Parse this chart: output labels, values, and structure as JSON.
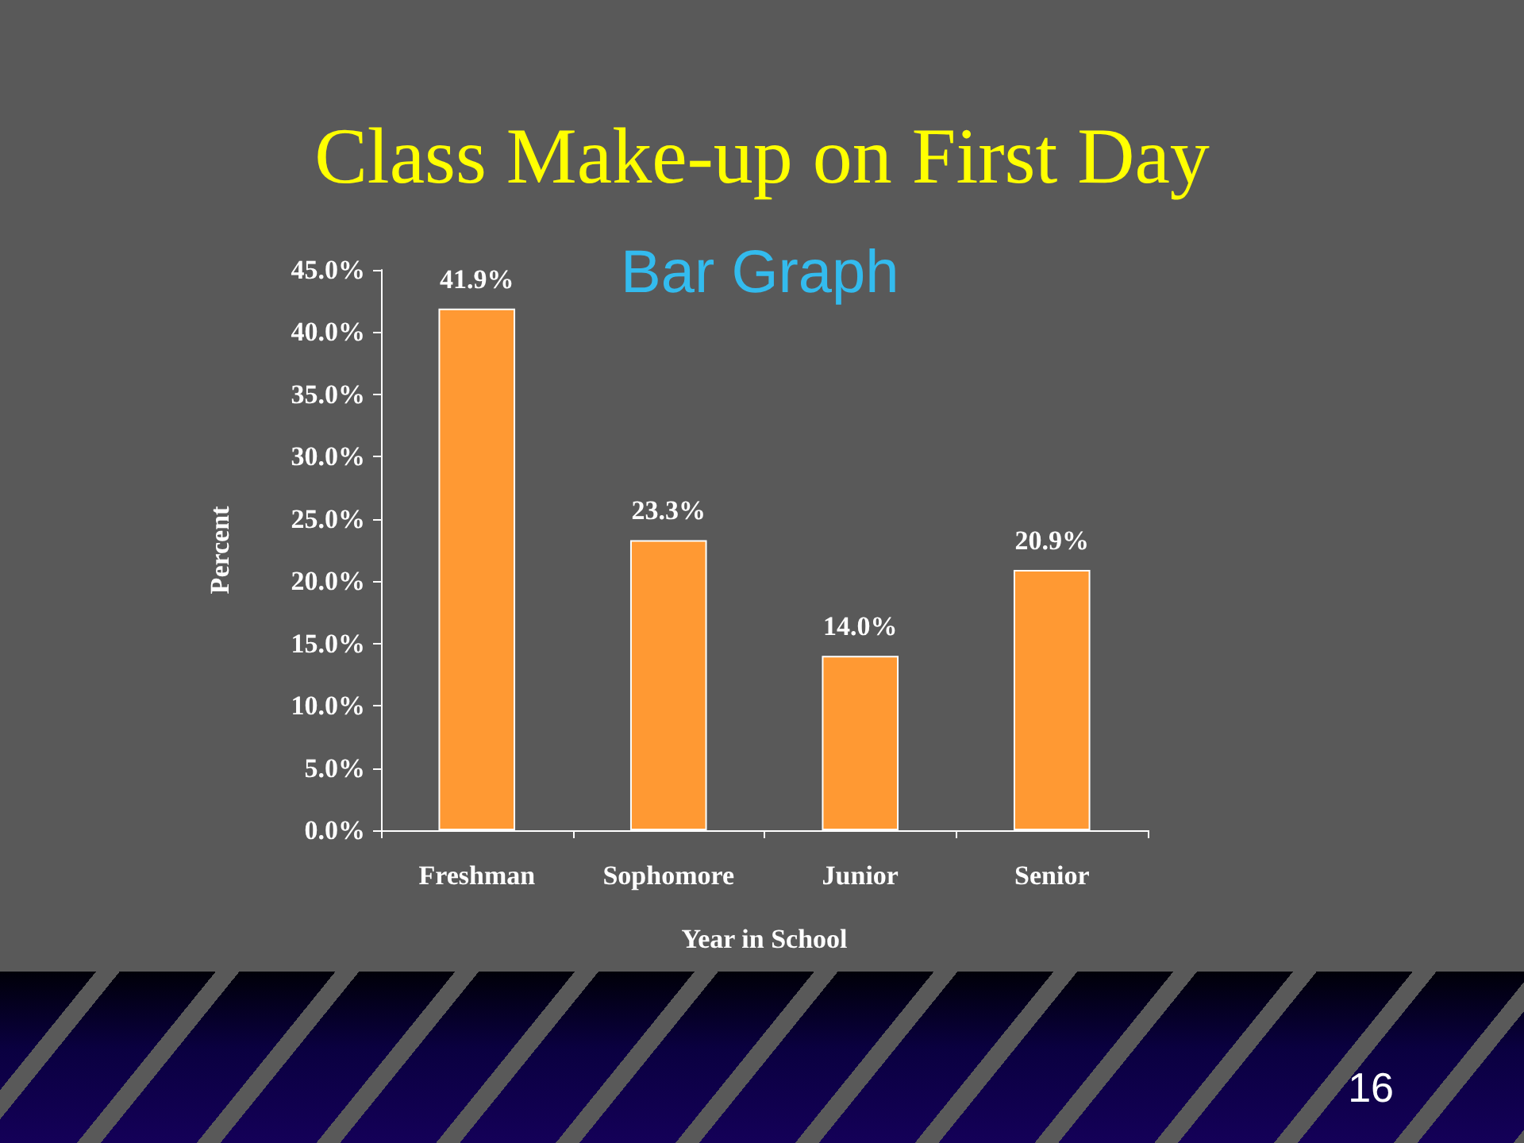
{
  "chart_data": {
    "type": "bar",
    "title": "Class Make-up on First Day",
    "subtitle": "Bar Graph",
    "xlabel": "Year in School",
    "ylabel": "Percent",
    "categories": [
      "Freshman",
      "Sophomore",
      "Junior",
      "Senior"
    ],
    "values": [
      41.9,
      23.3,
      14.0,
      20.9
    ],
    "color": "#ff9933",
    "value_labels": [
      "41.9%",
      "23.3%",
      "14.0%",
      "20.9%"
    ],
    "ylim": [
      0,
      45
    ],
    "yticks": [
      {
        "value": 0,
        "label": "0.0%"
      },
      {
        "value": 5,
        "label": "5.0%"
      },
      {
        "value": 10,
        "label": "10.0%"
      },
      {
        "value": 15,
        "label": "15.0%"
      },
      {
        "value": 20,
        "label": "20.0%"
      },
      {
        "value": 25,
        "label": "25.0%"
      },
      {
        "value": 30,
        "label": "30.0%"
      },
      {
        "value": 35,
        "label": "35.0%"
      },
      {
        "value": 40,
        "label": "40.0%"
      },
      {
        "value": 45,
        "label": "45.0%"
      }
    ],
    "annotations": [
      "16"
    ]
  }
}
